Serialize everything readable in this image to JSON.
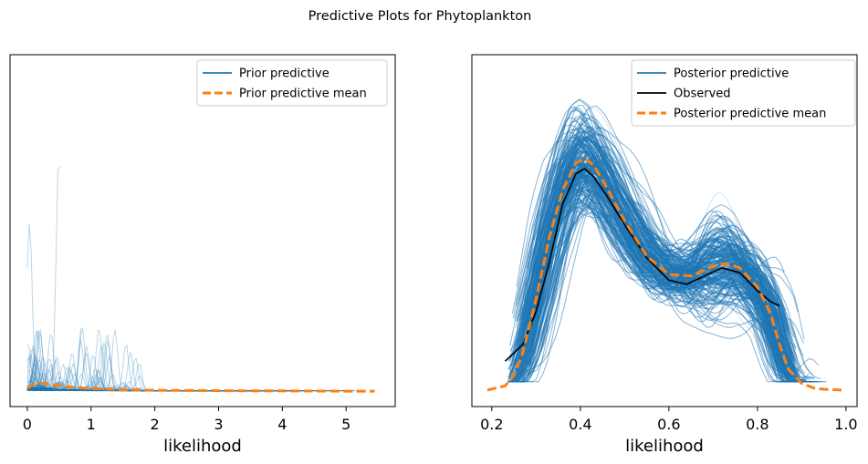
{
  "figure": {
    "title": "Predictive Plots for Phytoplankton"
  },
  "chart_data": [
    {
      "type": "line",
      "xlabel": "likelihood",
      "ylabel": "",
      "xlim": [
        -0.27,
        5.77
      ],
      "ylim": [
        -0.35,
        7.85
      ],
      "xticks": [
        0,
        1,
        2,
        3,
        4,
        5
      ],
      "xtick_labels": [
        "0",
        "1",
        "2",
        "3",
        "4",
        "5"
      ],
      "y_axis_visible": false,
      "grid": false,
      "legend_position": "top-right",
      "legend": [
        {
          "label": "Prior predictive",
          "style": "solid",
          "color": "#1f77b4"
        },
        {
          "label": "Prior predictive mean",
          "style": "dashed",
          "color": "#ff7f0e"
        }
      ],
      "sample_color": "#1f77b4",
      "series": [
        {
          "name": "Prior predictive mean",
          "style": "dashed",
          "color": "#ff7f0e",
          "x": [
            0.0,
            0.1,
            0.2,
            0.3,
            0.5,
            0.7,
            1.0,
            1.5,
            2.0,
            3.0,
            4.0,
            5.0,
            5.45
          ],
          "y": [
            0.08,
            0.17,
            0.2,
            0.18,
            0.14,
            0.1,
            0.07,
            0.04,
            0.03,
            0.02,
            0.015,
            0.01,
            0.01
          ]
        }
      ]
    },
    {
      "type": "line",
      "xlabel": "likelihood",
      "ylabel": "",
      "xlim": [
        0.155,
        1.025
      ],
      "ylim": [
        -0.2,
        4.06
      ],
      "xticks": [
        0.2,
        0.4,
        0.6,
        0.8,
        1.0
      ],
      "xtick_labels": [
        "0.2",
        "0.4",
        "0.6",
        "0.8",
        "1.0"
      ],
      "y_axis_visible": false,
      "grid": false,
      "legend_position": "top-right",
      "legend": [
        {
          "label": "Posterior predictive",
          "style": "solid",
          "color": "#1f77b4"
        },
        {
          "label": "Observed",
          "style": "solid",
          "color": "#000000"
        },
        {
          "label": "Posterior predictive mean",
          "style": "dashed",
          "color": "#ff7f0e"
        }
      ],
      "sample_color": "#1f77b4",
      "series": [
        {
          "name": "Observed",
          "style": "solid",
          "color": "#000000",
          "x": [
            0.23,
            0.27,
            0.3,
            0.33,
            0.36,
            0.39,
            0.41,
            0.43,
            0.46,
            0.5,
            0.55,
            0.6,
            0.64,
            0.68,
            0.72,
            0.76,
            0.8,
            0.83,
            0.85
          ],
          "y": [
            0.35,
            0.55,
            0.95,
            1.55,
            2.25,
            2.62,
            2.68,
            2.58,
            2.35,
            2.0,
            1.6,
            1.33,
            1.28,
            1.38,
            1.48,
            1.42,
            1.2,
            1.07,
            1.02
          ]
        },
        {
          "name": "Posterior predictive mean",
          "style": "dashed",
          "color": "#ff7f0e",
          "x": [
            0.19,
            0.23,
            0.25,
            0.27,
            0.3,
            0.33,
            0.36,
            0.39,
            0.41,
            0.43,
            0.46,
            0.5,
            0.55,
            0.6,
            0.65,
            0.7,
            0.73,
            0.76,
            0.8,
            0.83,
            0.85,
            0.87,
            0.9,
            0.93,
            0.95,
            0.99
          ],
          "y": [
            0.0,
            0.05,
            0.18,
            0.45,
            1.1,
            1.85,
            2.42,
            2.75,
            2.8,
            2.72,
            2.45,
            2.05,
            1.62,
            1.4,
            1.38,
            1.5,
            1.53,
            1.48,
            1.25,
            0.92,
            0.55,
            0.25,
            0.08,
            0.02,
            0.01,
            0.0
          ]
        }
      ]
    }
  ]
}
